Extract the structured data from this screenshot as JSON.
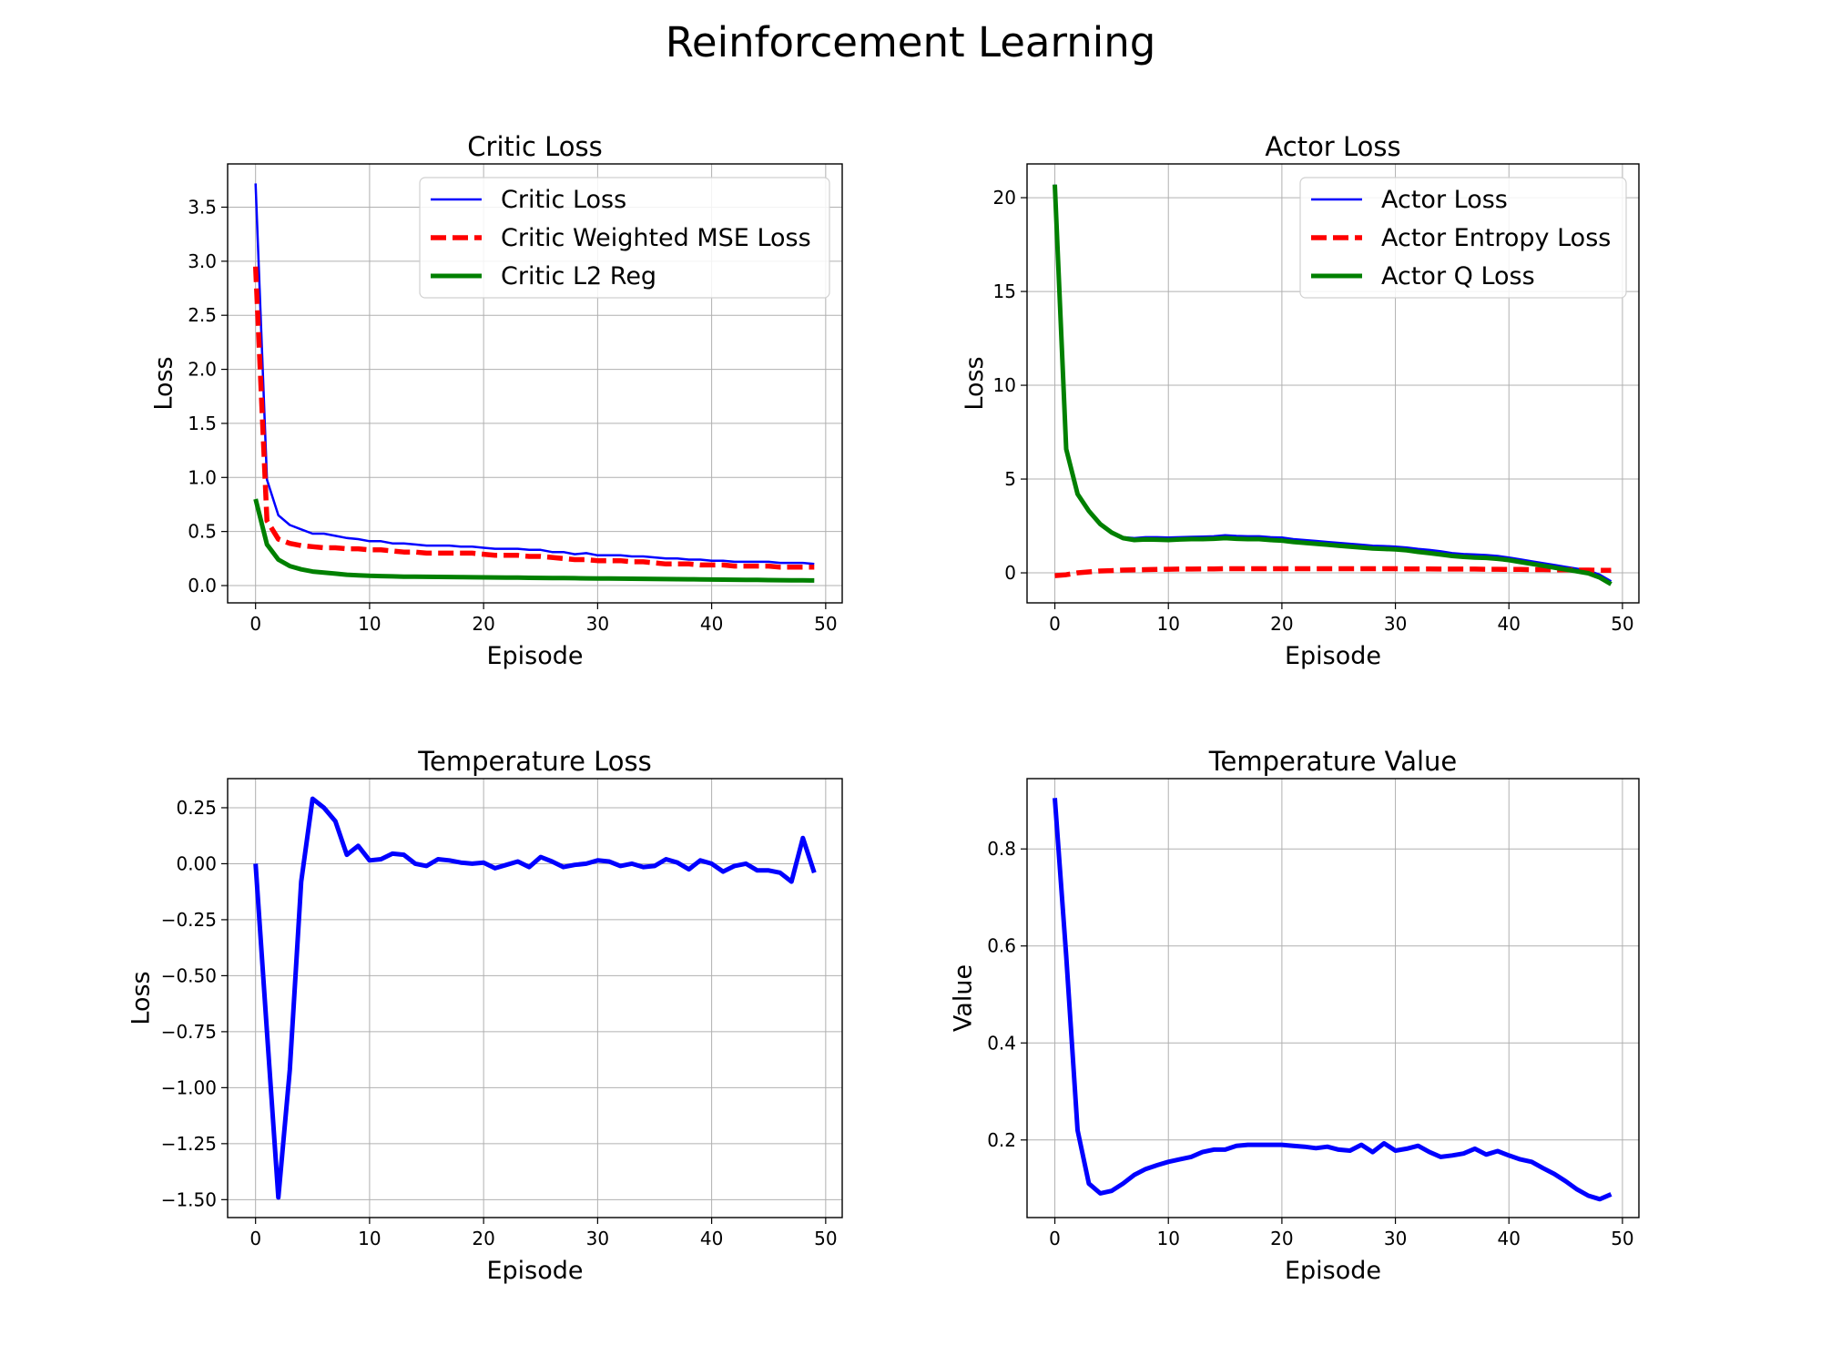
{
  "figure": {
    "title": "Reinforcement Learning"
  },
  "colors": {
    "blue": "#0000ff",
    "red": "#ff0000",
    "green": "#008000"
  },
  "chart_data": [
    {
      "type": "line",
      "title": "Critic Loss",
      "xlabel": "Episode",
      "ylabel": "Loss",
      "xlim": [
        -2.45,
        51.45
      ],
      "ylim": [
        -0.16,
        3.9
      ],
      "xticks": [
        0,
        10,
        20,
        30,
        40,
        50
      ],
      "yticks": [
        0.0,
        0.5,
        1.0,
        1.5,
        2.0,
        2.5,
        3.0,
        3.5
      ],
      "ytick_decimals": 1,
      "grid": true,
      "legend": "upper right",
      "series": [
        {
          "name": "Critic Loss",
          "color": "blue",
          "style": "thin",
          "values": [
            3.72,
            0.98,
            0.65,
            0.56,
            0.52,
            0.48,
            0.48,
            0.46,
            0.44,
            0.43,
            0.41,
            0.41,
            0.39,
            0.39,
            0.38,
            0.37,
            0.37,
            0.37,
            0.36,
            0.36,
            0.35,
            0.34,
            0.34,
            0.34,
            0.33,
            0.33,
            0.31,
            0.31,
            0.29,
            0.3,
            0.28,
            0.28,
            0.28,
            0.27,
            0.27,
            0.26,
            0.25,
            0.25,
            0.24,
            0.24,
            0.23,
            0.23,
            0.22,
            0.22,
            0.22,
            0.22,
            0.21,
            0.21,
            0.21,
            0.2
          ]
        },
        {
          "name": "Critic Weighted MSE Loss",
          "color": "red",
          "style": "dashed",
          "values": [
            2.95,
            0.6,
            0.43,
            0.39,
            0.37,
            0.36,
            0.35,
            0.35,
            0.34,
            0.34,
            0.33,
            0.33,
            0.32,
            0.31,
            0.31,
            0.3,
            0.3,
            0.3,
            0.3,
            0.3,
            0.29,
            0.28,
            0.28,
            0.28,
            0.27,
            0.27,
            0.26,
            0.25,
            0.24,
            0.24,
            0.23,
            0.23,
            0.23,
            0.22,
            0.22,
            0.21,
            0.2,
            0.2,
            0.2,
            0.19,
            0.19,
            0.19,
            0.18,
            0.18,
            0.18,
            0.18,
            0.17,
            0.17,
            0.17,
            0.17
          ]
        },
        {
          "name": "Critic L2 Reg",
          "color": "green",
          "style": "thick",
          "values": [
            0.8,
            0.38,
            0.24,
            0.18,
            0.15,
            0.13,
            0.12,
            0.11,
            0.1,
            0.095,
            0.09,
            0.088,
            0.085,
            0.083,
            0.082,
            0.081,
            0.08,
            0.079,
            0.078,
            0.077,
            0.076,
            0.075,
            0.074,
            0.073,
            0.072,
            0.071,
            0.07,
            0.069,
            0.068,
            0.067,
            0.066,
            0.065,
            0.064,
            0.063,
            0.062,
            0.061,
            0.06,
            0.059,
            0.058,
            0.057,
            0.056,
            0.055,
            0.054,
            0.053,
            0.052,
            0.051,
            0.05,
            0.049,
            0.048,
            0.047
          ]
        }
      ]
    },
    {
      "type": "line",
      "title": "Actor Loss",
      "xlabel": "Episode",
      "ylabel": "Loss",
      "xlim": [
        -2.45,
        51.45
      ],
      "ylim": [
        -1.6,
        21.8
      ],
      "xticks": [
        0,
        10,
        20,
        30,
        40,
        50
      ],
      "yticks": [
        0,
        5,
        10,
        15,
        20
      ],
      "ytick_decimals": 0,
      "grid": true,
      "legend": "upper right",
      "series": [
        {
          "name": "Actor Loss",
          "color": "blue",
          "style": "thin",
          "values": [
            20.7,
            6.6,
            4.2,
            3.3,
            2.6,
            2.2,
            1.9,
            1.85,
            1.9,
            1.9,
            1.88,
            1.9,
            1.92,
            1.93,
            1.95,
            2.0,
            1.97,
            1.95,
            1.95,
            1.9,
            1.88,
            1.8,
            1.75,
            1.7,
            1.65,
            1.6,
            1.55,
            1.5,
            1.45,
            1.43,
            1.4,
            1.35,
            1.28,
            1.22,
            1.15,
            1.05,
            1.0,
            0.98,
            0.95,
            0.9,
            0.82,
            0.72,
            0.62,
            0.52,
            0.42,
            0.32,
            0.22,
            0.12,
            -0.1,
            -0.45
          ]
        },
        {
          "name": "Actor Entropy Loss",
          "color": "red",
          "style": "dashed",
          "values": [
            -0.15,
            -0.1,
            0.0,
            0.05,
            0.1,
            0.12,
            0.15,
            0.16,
            0.17,
            0.18,
            0.19,
            0.2,
            0.2,
            0.21,
            0.21,
            0.22,
            0.22,
            0.22,
            0.22,
            0.22,
            0.22,
            0.22,
            0.22,
            0.22,
            0.22,
            0.22,
            0.22,
            0.22,
            0.22,
            0.22,
            0.22,
            0.21,
            0.21,
            0.21,
            0.2,
            0.2,
            0.2,
            0.2,
            0.19,
            0.19,
            0.18,
            0.18,
            0.17,
            0.17,
            0.16,
            0.16,
            0.15,
            0.15,
            0.14,
            0.14
          ]
        },
        {
          "name": "Actor Q Loss",
          "color": "green",
          "style": "thick",
          "values": [
            20.7,
            6.6,
            4.2,
            3.3,
            2.6,
            2.15,
            1.85,
            1.75,
            1.78,
            1.77,
            1.75,
            1.78,
            1.8,
            1.8,
            1.82,
            1.85,
            1.82,
            1.8,
            1.8,
            1.75,
            1.72,
            1.65,
            1.6,
            1.55,
            1.5,
            1.45,
            1.4,
            1.35,
            1.3,
            1.28,
            1.25,
            1.2,
            1.12,
            1.05,
            0.98,
            0.9,
            0.85,
            0.82,
            0.8,
            0.75,
            0.68,
            0.58,
            0.48,
            0.38,
            0.28,
            0.18,
            0.08,
            -0.02,
            -0.25,
            -0.6
          ]
        }
      ]
    },
    {
      "type": "line",
      "title": "Temperature Loss",
      "xlabel": "Episode",
      "ylabel": "Loss",
      "xlim": [
        -2.45,
        51.45
      ],
      "ylim": [
        -1.58,
        0.38
      ],
      "xticks": [
        0,
        10,
        20,
        30,
        40,
        50
      ],
      "yticks": [
        -1.5,
        -1.25,
        -1.0,
        -0.75,
        -0.5,
        -0.25,
        0.0,
        0.25
      ],
      "ytick_decimals": 2,
      "grid": true,
      "series": [
        {
          "name": "Temperature Loss",
          "color": "blue",
          "style": "thick",
          "values": [
            0.0,
            -0.75,
            -1.49,
            -0.92,
            -0.08,
            0.29,
            0.25,
            0.19,
            0.04,
            0.08,
            0.015,
            0.02,
            0.045,
            0.04,
            0.0,
            -0.01,
            0.02,
            0.015,
            0.005,
            0.0,
            0.005,
            -0.02,
            -0.005,
            0.01,
            -0.015,
            0.03,
            0.01,
            -0.015,
            -0.005,
            0.0,
            0.015,
            0.01,
            -0.01,
            0.0,
            -0.015,
            -0.01,
            0.02,
            0.005,
            -0.025,
            0.015,
            0.0,
            -0.035,
            -0.01,
            0.0,
            -0.03,
            -0.03,
            -0.04,
            -0.08,
            0.115,
            -0.04
          ]
        }
      ]
    },
    {
      "type": "line",
      "title": "Temperature Value",
      "xlabel": "Episode",
      "ylabel": "Value",
      "xlim": [
        -2.45,
        51.45
      ],
      "ylim": [
        0.04,
        0.945
      ],
      "xticks": [
        0,
        10,
        20,
        30,
        40,
        50
      ],
      "yticks": [
        0.2,
        0.4,
        0.6,
        0.8
      ],
      "ytick_decimals": 1,
      "grid": true,
      "series": [
        {
          "name": "Temperature Value",
          "color": "blue",
          "style": "thick",
          "values": [
            0.905,
            0.58,
            0.22,
            0.11,
            0.09,
            0.095,
            0.11,
            0.128,
            0.14,
            0.148,
            0.155,
            0.16,
            0.165,
            0.175,
            0.18,
            0.18,
            0.188,
            0.19,
            0.19,
            0.19,
            0.19,
            0.188,
            0.186,
            0.183,
            0.186,
            0.18,
            0.178,
            0.19,
            0.175,
            0.193,
            0.178,
            0.182,
            0.188,
            0.175,
            0.165,
            0.168,
            0.172,
            0.182,
            0.17,
            0.177,
            0.168,
            0.16,
            0.155,
            0.142,
            0.13,
            0.115,
            0.098,
            0.085,
            0.078,
            0.088
          ]
        }
      ]
    }
  ]
}
